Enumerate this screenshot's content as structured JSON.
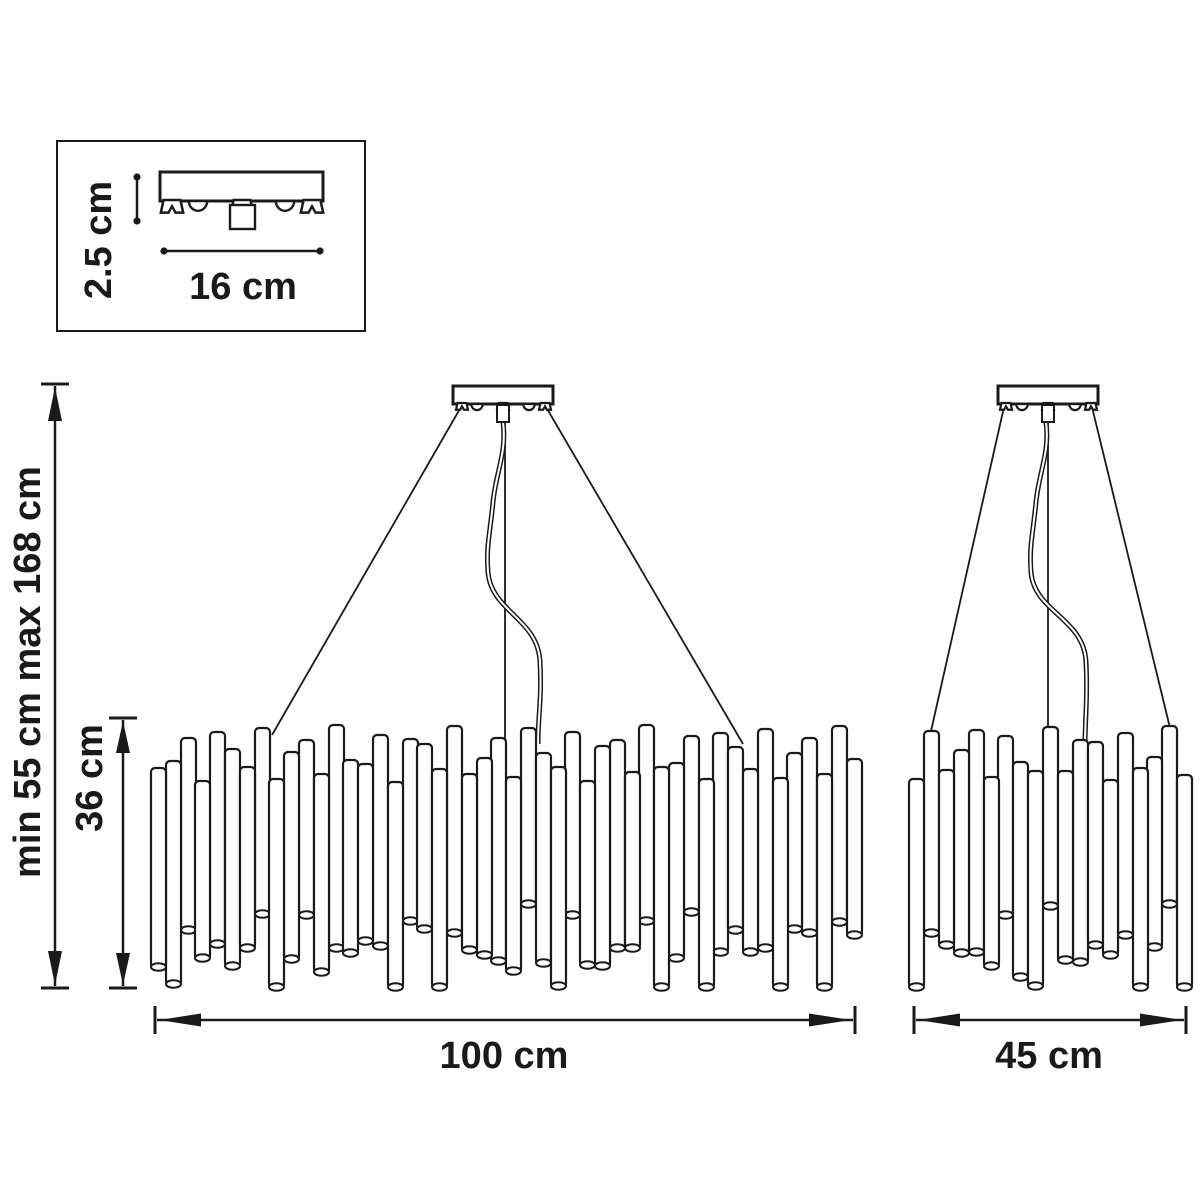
{
  "diagram": {
    "kind": "chandelier-dimension-drawing",
    "colors": {
      "line": "#1a1a1a",
      "background": "#ffffff"
    },
    "inset": {
      "height_label": "2.5 cm",
      "width_label": "16 cm"
    },
    "front_view": {
      "total_height_label": "min 55 cm max 168 cm",
      "body_height_label": "36 cm",
      "width_label": "100 cm"
    },
    "side_view": {
      "width_label": "45 cm"
    }
  }
}
